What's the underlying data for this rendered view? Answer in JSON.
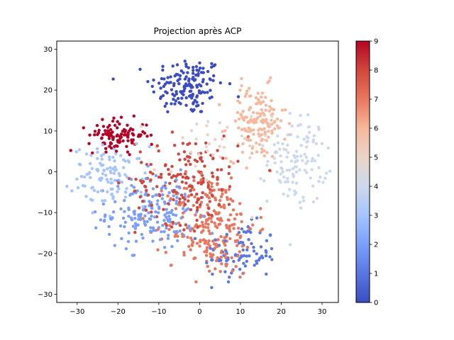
{
  "chart_data": {
    "type": "scatter",
    "title": "Projection après ACP",
    "xlabel": "",
    "ylabel": "",
    "xlim": [
      -35,
      34
    ],
    "ylim": [
      -32,
      32
    ],
    "x_ticks": [
      -30,
      -20,
      -10,
      0,
      10,
      20,
      30
    ],
    "y_ticks": [
      -30,
      -20,
      -10,
      0,
      10,
      20,
      30
    ],
    "x_tick_labels": [
      "−30",
      "−20",
      "−10",
      "0",
      "10",
      "20",
      "30"
    ],
    "y_tick_labels": [
      "−30",
      "−20",
      "−10",
      "0",
      "10",
      "20",
      "30"
    ],
    "grid": false,
    "colormap": "coolwarm",
    "colorbar": {
      "range": [
        0,
        9
      ],
      "ticks": [
        0,
        1,
        2,
        3,
        4,
        5,
        6,
        7,
        8,
        9
      ],
      "tick_labels": [
        "0",
        "1",
        "2",
        "3",
        "4",
        "5",
        "6",
        "7",
        "8",
        "9"
      ]
    },
    "clusters": [
      {
        "label": 0,
        "color": "#3b4cc0",
        "center": [
          -3,
          21
        ],
        "spread": [
          5,
          4
        ],
        "n": 150
      },
      {
        "label": 1,
        "color": "#5977e3",
        "center": [
          10,
          -20
        ],
        "spread": [
          5,
          4
        ],
        "n": 90
      },
      {
        "label": 2,
        "color": "#7b9ff9",
        "center": [
          -12,
          -10
        ],
        "spread": [
          6,
          5
        ],
        "n": 190
      },
      {
        "label": 3,
        "color": "#a6c4fe",
        "center": [
          -22,
          -1
        ],
        "spread": [
          5,
          4
        ],
        "n": 110
      },
      {
        "label": 4,
        "color": "#cdd9ec",
        "center": [
          24,
          3
        ],
        "spread": [
          4,
          6
        ],
        "n": 120
      },
      {
        "label": 5,
        "color": "#ead4c8",
        "center": [
          3,
          5
        ],
        "spread": [
          8,
          6
        ],
        "n": 40
      },
      {
        "label": 6,
        "color": "#f7b89c",
        "center": [
          14,
          12
        ],
        "spread": [
          4,
          5
        ],
        "n": 150
      },
      {
        "label": 7,
        "color": "#e8775f",
        "center": [
          3,
          -13
        ],
        "spread": [
          6,
          7
        ],
        "n": 240
      },
      {
        "label": 8,
        "color": "#d0473d",
        "center": [
          -3,
          -2
        ],
        "spread": [
          7,
          6
        ],
        "n": 170
      },
      {
        "label": 9,
        "color": "#b40426",
        "center": [
          -20,
          9
        ],
        "spread": [
          4,
          2
        ],
        "n": 110
      }
    ]
  }
}
